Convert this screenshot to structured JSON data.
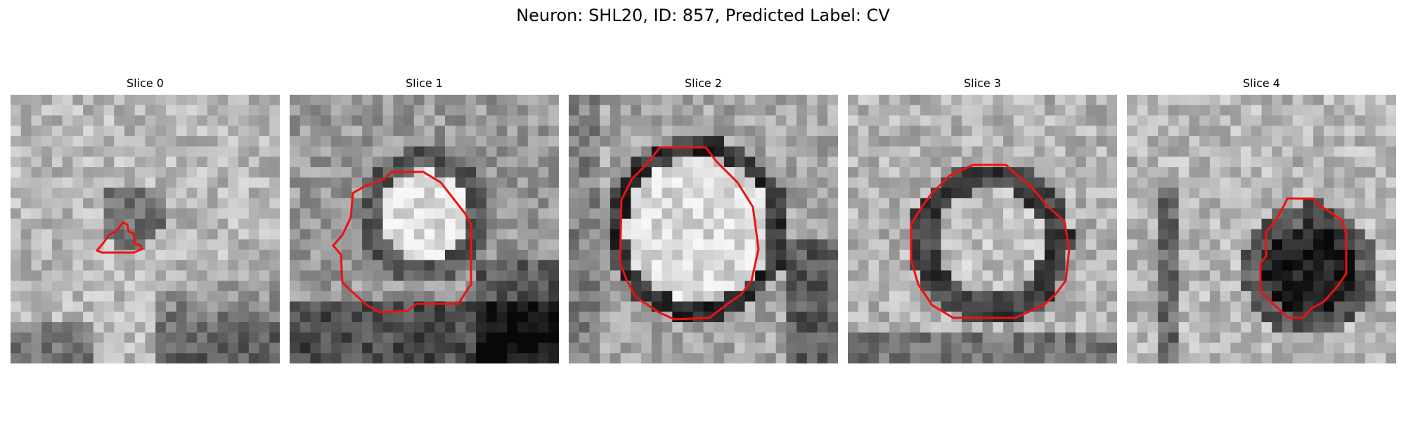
{
  "figure": {
    "title": "Neuron: SHL20, ID: 857, Predicted Label: CV"
  },
  "colors": {
    "contour": "#ee1111",
    "background": "#ffffff"
  },
  "panels": [
    {
      "label": "Slice 0",
      "seed": 11,
      "blob": "dark-small"
    },
    {
      "label": "Slice 1",
      "seed": 23,
      "blob": "bright-ring"
    },
    {
      "label": "Slice 2",
      "seed": 37,
      "blob": "bright-ring-large"
    },
    {
      "label": "Slice 3",
      "seed": 41,
      "blob": "textured-ring"
    },
    {
      "label": "Slice 4",
      "seed": 59,
      "blob": "dark-core"
    }
  ]
}
